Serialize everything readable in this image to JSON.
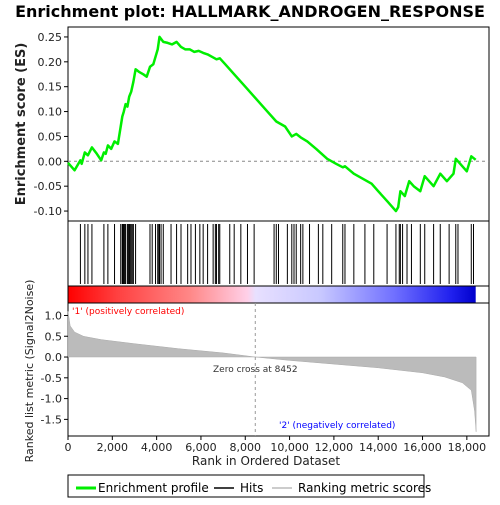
{
  "chart_data": {
    "type": "line",
    "title": "Enrichment plot: HALLMARK_ANDROGEN_RESPONSE",
    "top_panel": {
      "ylabel": "Enrichment score (ES)",
      "ylim": [
        -0.12,
        0.27
      ],
      "yticks": [
        "0.25",
        "0.20",
        "0.15",
        "0.10",
        "0.05",
        "0.00",
        "-0.05",
        "-0.10"
      ],
      "ytick_values": [
        0.25,
        0.2,
        0.15,
        0.1,
        0.05,
        0.0,
        -0.05,
        -0.1
      ],
      "series": [
        {
          "name": "Enrichment profile",
          "color": "#00ee00",
          "points": [
            [
              0,
              -0.003
            ],
            [
              300,
              -0.018
            ],
            [
              560,
              0.002
            ],
            [
              620,
              -0.005
            ],
            [
              760,
              0.018
            ],
            [
              900,
              0.012
            ],
            [
              1080,
              0.028
            ],
            [
              1300,
              0.015
            ],
            [
              1500,
              0.002
            ],
            [
              1620,
              0.018
            ],
            [
              1700,
              0.015
            ],
            [
              1800,
              0.032
            ],
            [
              1950,
              0.025
            ],
            [
              2100,
              0.04
            ],
            [
              2250,
              0.035
            ],
            [
              2380,
              0.07
            ],
            [
              2450,
              0.09
            ],
            [
              2520,
              0.1
            ],
            [
              2600,
              0.115
            ],
            [
              2680,
              0.11
            ],
            [
              2760,
              0.13
            ],
            [
              2850,
              0.14
            ],
            [
              2950,
              0.16
            ],
            [
              3050,
              0.185
            ],
            [
              3200,
              0.18
            ],
            [
              3400,
              0.175
            ],
            [
              3550,
              0.17
            ],
            [
              3700,
              0.19
            ],
            [
              3850,
              0.195
            ],
            [
              3950,
              0.21
            ],
            [
              4050,
              0.225
            ],
            [
              4130,
              0.25
            ],
            [
              4300,
              0.24
            ],
            [
              4500,
              0.238
            ],
            [
              4700,
              0.235
            ],
            [
              4900,
              0.24
            ],
            [
              5100,
              0.23
            ],
            [
              5300,
              0.225
            ],
            [
              5500,
              0.225
            ],
            [
              5700,
              0.22
            ],
            [
              5900,
              0.222
            ],
            [
              6100,
              0.218
            ],
            [
              6300,
              0.215
            ],
            [
              6500,
              0.21
            ],
            [
              6700,
              0.205
            ],
            [
              6850,
              0.207
            ],
            [
              7100,
              0.195
            ],
            [
              7500,
              0.175
            ],
            [
              8000,
              0.15
            ],
            [
              8500,
              0.125
            ],
            [
              9000,
              0.1
            ],
            [
              9400,
              0.08
            ],
            [
              9800,
              0.07
            ],
            [
              10100,
              0.05
            ],
            [
              10300,
              0.055
            ],
            [
              10500,
              0.048
            ],
            [
              10800,
              0.04
            ],
            [
              11200,
              0.025
            ],
            [
              11700,
              0.005
            ],
            [
              12100,
              -0.005
            ],
            [
              12400,
              -0.012
            ],
            [
              12500,
              -0.01
            ],
            [
              12900,
              -0.025
            ],
            [
              13300,
              -0.035
            ],
            [
              13700,
              -0.045
            ],
            [
              14000,
              -0.06
            ],
            [
              14400,
              -0.08
            ],
            [
              14800,
              -0.1
            ],
            [
              14900,
              -0.092
            ],
            [
              15000,
              -0.06
            ],
            [
              15200,
              -0.07
            ],
            [
              15400,
              -0.04
            ],
            [
              15600,
              -0.05
            ],
            [
              15900,
              -0.06
            ],
            [
              16100,
              -0.03
            ],
            [
              16500,
              -0.05
            ],
            [
              16800,
              -0.025
            ],
            [
              17100,
              -0.04
            ],
            [
              17400,
              -0.025
            ],
            [
              17500,
              0.005
            ],
            [
              17800,
              -0.01
            ],
            [
              18000,
              -0.02
            ],
            [
              18200,
              0.01
            ],
            [
              18400,
              0.003
            ]
          ]
        }
      ]
    },
    "hits_panel": {
      "series_name": "Hits",
      "positions": [
        560,
        760,
        900,
        1080,
        1620,
        1800,
        2100,
        2380,
        2450,
        2480,
        2520,
        2560,
        2600,
        2680,
        2720,
        2760,
        2800,
        2850,
        2900,
        2950,
        3050,
        3700,
        3800,
        3950,
        4050,
        4100,
        4130,
        4200,
        4300,
        4650,
        4900,
        5100,
        5400,
        5550,
        5750,
        5950,
        6100,
        6300,
        6550,
        6650,
        6700,
        6800,
        6850,
        7300,
        7500,
        7800,
        8100,
        8400,
        9300,
        9400,
        9500,
        9900,
        10100,
        10200,
        10300,
        10500,
        10600,
        10900,
        11300,
        11500,
        11900,
        12400,
        12500,
        12900,
        13400,
        13800,
        14400,
        14800,
        14950,
        15000,
        15100,
        15300,
        15500,
        15900,
        16100,
        16500,
        16800,
        17200,
        17500,
        17600,
        18200,
        18300
      ]
    },
    "metric_panel": {
      "ylabel": "Ranked list metric (Signal2Noise)",
      "series_name": "Ranking metric scores",
      "ylim": [
        -1.9,
        1.3
      ],
      "yticks": [
        "1.0",
        "0.5",
        "0.0",
        "-0.5",
        "-1.0",
        "-1.5"
      ],
      "ytick_values": [
        1.0,
        0.5,
        0.0,
        -0.5,
        -1.0,
        -1.5
      ],
      "points": [
        [
          0,
          1.1
        ],
        [
          100,
          0.75
        ],
        [
          300,
          0.6
        ],
        [
          700,
          0.5
        ],
        [
          1500,
          0.42
        ],
        [
          3000,
          0.32
        ],
        [
          5000,
          0.2
        ],
        [
          7000,
          0.1
        ],
        [
          8452,
          0.0
        ],
        [
          10000,
          -0.08
        ],
        [
          12000,
          -0.17
        ],
        [
          14000,
          -0.26
        ],
        [
          16000,
          -0.38
        ],
        [
          17000,
          -0.48
        ],
        [
          17800,
          -0.62
        ],
        [
          18200,
          -0.8
        ],
        [
          18350,
          -1.3
        ],
        [
          18420,
          -1.8
        ]
      ],
      "zero_cross_label": "Zero cross at 8452",
      "zero_cross_x": 8452,
      "pos_label": "'1' (positively correlated)",
      "neg_label": "'2' (negatively correlated)",
      "pos_color": "#ff0000",
      "neg_color": "#0000ff"
    },
    "xaxis": {
      "label": "Rank in Ordered Dataset",
      "xlim": [
        0,
        19000
      ],
      "ticks": [
        "0",
        "2,000",
        "4,000",
        "6,000",
        "8,000",
        "10,000",
        "12,000",
        "14,000",
        "16,000",
        "18,000"
      ],
      "tick_values": [
        0,
        2000,
        4000,
        6000,
        8000,
        10000,
        12000,
        14000,
        16000,
        18000
      ],
      "n_genes": 18400
    },
    "legend": {
      "placement": "bottom",
      "entries": [
        {
          "label": "Enrichment profile",
          "color": "#00ee00"
        },
        {
          "label": "Hits",
          "color": "#000000"
        },
        {
          "label": "Ranking metric scores",
          "color": "#bbbbbb"
        }
      ]
    },
    "grid": false
  }
}
